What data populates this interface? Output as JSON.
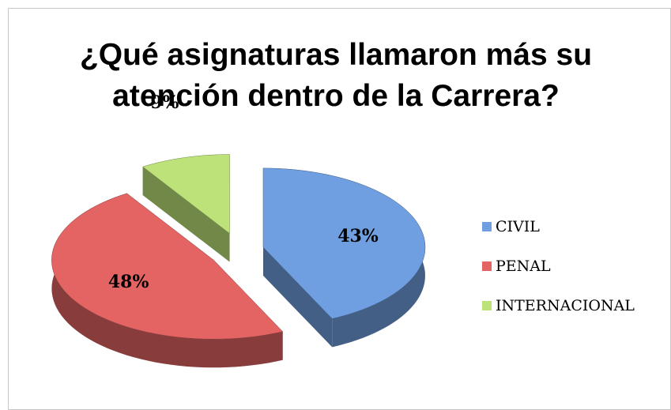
{
  "chart_data": {
    "type": "pie",
    "title": "¿Qué asignaturas llamaron más su atención dentro de la Carrera?",
    "categories": [
      "CIVIL",
      "PENAL",
      "INTERNACIONAL"
    ],
    "values": [
      43,
      48,
      9
    ],
    "value_labels": [
      "43%",
      "48%",
      "9%"
    ],
    "colors": [
      "#6f9fe0",
      "#e46464",
      "#bde27a"
    ],
    "legend": "right",
    "explode": true,
    "three_d": true
  }
}
